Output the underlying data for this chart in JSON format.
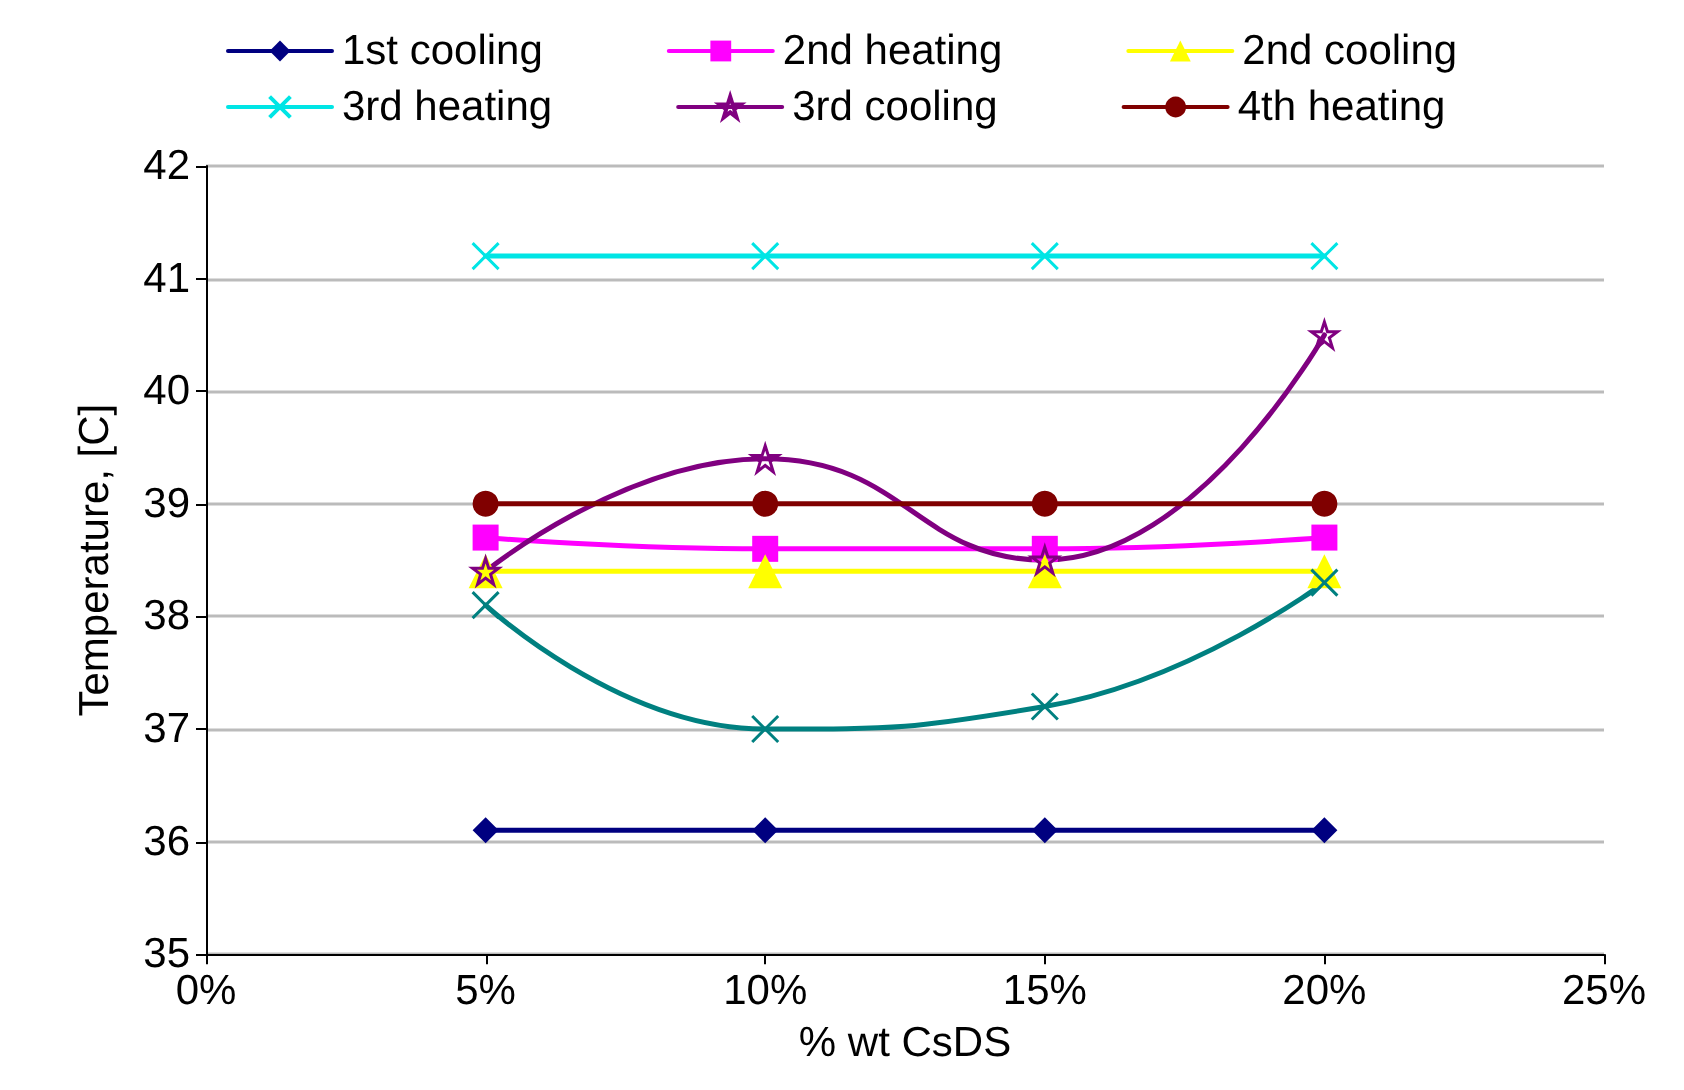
{
  "chart_data": {
    "type": "line",
    "xlabel": "% wt CsDS",
    "ylabel": "Temperature, [C]",
    "x": [
      5,
      10,
      15,
      20
    ],
    "series": [
      {
        "name": "1st cooling",
        "color": "#000080",
        "marker": "diamond",
        "values": [
          36.1,
          36.1,
          36.1,
          36.1
        ]
      },
      {
        "name": "2nd heating",
        "color": "#ff00ff",
        "marker": "square",
        "values": [
          38.7,
          38.6,
          38.6,
          38.7
        ]
      },
      {
        "name": "2nd cooling",
        "color": "#ffff00",
        "marker": "triangle",
        "values": [
          38.4,
          38.4,
          38.4,
          38.4
        ]
      },
      {
        "name": "3rd heating",
        "color": "#00e5e5",
        "marker": "cross",
        "values": [
          41.2,
          41.2,
          41.2,
          41.2
        ]
      },
      {
        "name": "3rd cooling",
        "color": "#800080",
        "marker": "star",
        "values": [
          38.4,
          39.4,
          38.5,
          40.5
        ]
      },
      {
        "name": "4th heating",
        "color": "#800000",
        "marker": "circle",
        "values": [
          39,
          39,
          39,
          39
        ]
      },
      {
        "color": "#008080",
        "marker": "cross",
        "values": [
          38.1,
          37.0,
          37.2,
          38.3
        ]
      }
    ],
    "xlim": [
      0,
      25
    ],
    "xticks": [
      {
        "value": 0,
        "label": "0%"
      },
      {
        "value": 5,
        "label": "5%"
      },
      {
        "value": 10,
        "label": "10%"
      },
      {
        "value": 15,
        "label": "15%"
      },
      {
        "value": 20,
        "label": "20%"
      },
      {
        "value": 25,
        "label": "25%"
      }
    ],
    "ylim": [
      35,
      42
    ],
    "yticks": [
      35,
      36,
      37,
      38,
      39,
      40,
      41,
      42
    ],
    "grid": "y",
    "legend": "top",
    "line_style": "solid"
  }
}
